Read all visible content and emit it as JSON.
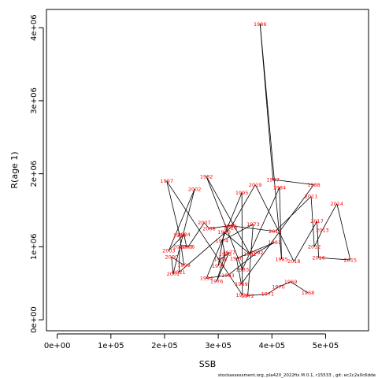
{
  "chart_data": {
    "type": "line",
    "xlabel": "SSB",
    "ylabel": "R(age 1)",
    "xlim": [
      -20000,
      580000
    ],
    "ylim": [
      -150000,
      4250000
    ],
    "x_ticks": [
      {
        "value": 0,
        "label": "0e+00"
      },
      {
        "value": 100000,
        "label": "1e+05"
      },
      {
        "value": 200000,
        "label": "2e+05"
      },
      {
        "value": 300000,
        "label": "3e+05"
      },
      {
        "value": 400000,
        "label": "4e+05"
      },
      {
        "value": 500000,
        "label": "5e+05"
      }
    ],
    "y_ticks": [
      {
        "value": 0,
        "label": "0e+00"
      },
      {
        "value": 1000000,
        "label": "1e+06"
      },
      {
        "value": 2000000,
        "label": "2e+06"
      },
      {
        "value": 3000000,
        "label": "3e+06"
      },
      {
        "value": 4000000,
        "label": "4e+06"
      }
    ],
    "line_color": "#000000",
    "label_color": "#ff0000",
    "points": [
      {
        "year": "1968",
        "x": 467000,
        "y": 370000
      },
      {
        "year": "1969",
        "x": 435000,
        "y": 520000
      },
      {
        "year": "1970",
        "x": 412000,
        "y": 450000
      },
      {
        "year": "1971",
        "x": 392000,
        "y": 355000
      },
      {
        "year": "1972",
        "x": 355000,
        "y": 330000
      },
      {
        "year": "1973",
        "x": 365000,
        "y": 1310000
      },
      {
        "year": "1974",
        "x": 307000,
        "y": 1080000
      },
      {
        "year": "1975",
        "x": 313000,
        "y": 900000
      },
      {
        "year": "1976",
        "x": 297000,
        "y": 525000
      },
      {
        "year": "1977",
        "x": 320000,
        "y": 920000
      },
      {
        "year": "1978",
        "x": 304000,
        "y": 830000
      },
      {
        "year": "1979",
        "x": 300000,
        "y": 740000
      },
      {
        "year": "1980",
        "x": 311000,
        "y": 1200000
      },
      {
        "year": "1981",
        "x": 359000,
        "y": 900000
      },
      {
        "year": "1982",
        "x": 278000,
        "y": 1960000
      },
      {
        "year": "1983",
        "x": 345000,
        "y": 690000
      },
      {
        "year": "1984",
        "x": 414000,
        "y": 1810000
      },
      {
        "year": "1985",
        "x": 418000,
        "y": 830000
      },
      {
        "year": "1986",
        "x": 378000,
        "y": 4050000
      },
      {
        "year": "1987",
        "x": 402000,
        "y": 1920000
      },
      {
        "year": "1988",
        "x": 478000,
        "y": 1850000
      },
      {
        "year": "1989",
        "x": 343000,
        "y": 490000
      },
      {
        "year": "1990",
        "x": 334000,
        "y": 840000
      },
      {
        "year": "1991",
        "x": 405000,
        "y": 1060000
      },
      {
        "year": "1992",
        "x": 372000,
        "y": 920000
      },
      {
        "year": "1993",
        "x": 318000,
        "y": 610000
      },
      {
        "year": "1994",
        "x": 278000,
        "y": 570000
      },
      {
        "year": "1995",
        "x": 344000,
        "y": 1740000
      },
      {
        "year": "1996",
        "x": 345000,
        "y": 340000
      },
      {
        "year": "1997",
        "x": 204000,
        "y": 1900000
      },
      {
        "year": "1998",
        "x": 228000,
        "y": 1160000
      },
      {
        "year": "1999",
        "x": 236000,
        "y": 750000
      },
      {
        "year": "2000",
        "x": 213000,
        "y": 860000
      },
      {
        "year": "2001",
        "x": 216000,
        "y": 630000
      },
      {
        "year": "2002",
        "x": 256000,
        "y": 1790000
      },
      {
        "year": "2003",
        "x": 208000,
        "y": 950000
      },
      {
        "year": "2004",
        "x": 236000,
        "y": 1170000
      },
      {
        "year": "2005",
        "x": 241000,
        "y": 1000000
      },
      {
        "year": "2006",
        "x": 244000,
        "y": 1000000
      },
      {
        "year": "2007",
        "x": 274000,
        "y": 1330000
      },
      {
        "year": "2008",
        "x": 283000,
        "y": 1250000
      },
      {
        "year": "2009",
        "x": 322000,
        "y": 1290000
      },
      {
        "year": "2010",
        "x": 406000,
        "y": 1210000
      },
      {
        "year": "2011",
        "x": 473000,
        "y": 1690000
      },
      {
        "year": "2012",
        "x": 479000,
        "y": 1000000
      },
      {
        "year": "2013",
        "x": 494000,
        "y": 1230000
      },
      {
        "year": "2014",
        "x": 521000,
        "y": 1590000
      },
      {
        "year": "2015",
        "x": 546000,
        "y": 820000
      },
      {
        "year": "2016",
        "x": 487000,
        "y": 850000
      },
      {
        "year": "2017",
        "x": 484000,
        "y": 1350000
      },
      {
        "year": "2018",
        "x": 441000,
        "y": 800000
      },
      {
        "year": "2019",
        "x": 369000,
        "y": 1850000
      },
      {
        "year": "2020",
        "x": 323000,
        "y": 1260000
      },
      {
        "year": "2021",
        "x": 227000,
        "y": 650000
      },
      {
        "year": "2022",
        "x": 228000,
        "y": 1000000
      }
    ]
  },
  "footer_text": "stockassessment.org,  pla420_2022fix  M  0.1,  r15533 ,  git:  ec2c2a0c6dde"
}
